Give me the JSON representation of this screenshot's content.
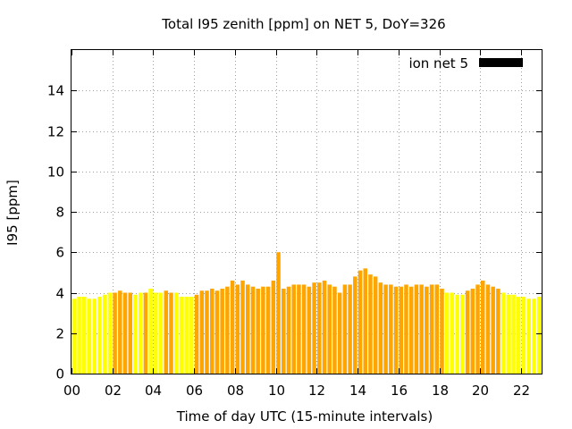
{
  "chart_data": {
    "type": "bar",
    "title": "Total I95 zenith [ppm] on NET 5, DoY=326",
    "xlabel": "Time of day UTC (15-minute intervals)",
    "ylabel": "I95 [ppm]",
    "xlim": [
      0,
      23.0
    ],
    "ylim": [
      0,
      16
    ],
    "xticks": [
      "00",
      "02",
      "04",
      "06",
      "08",
      "10",
      "12",
      "14",
      "16",
      "18",
      "20",
      "22"
    ],
    "yticks": [
      "0",
      "2",
      "4",
      "6",
      "8",
      "10",
      "12",
      "14"
    ],
    "grid": true,
    "legend": {
      "label": "ion net 5",
      "placement": "top-right",
      "color": "#000000"
    },
    "colors": {
      "low": "#ffff00",
      "high": "#ffa500"
    },
    "bar_width_hours": 0.25,
    "values": [
      3.7,
      3.8,
      3.8,
      3.7,
      3.7,
      3.8,
      3.9,
      4.0,
      4.0,
      4.1,
      4.0,
      4.0,
      3.9,
      4.0,
      4.0,
      4.2,
      4.0,
      4.0,
      4.1,
      4.0,
      4.0,
      3.8,
      3.8,
      3.8,
      3.9,
      4.1,
      4.1,
      4.2,
      4.1,
      4.2,
      4.3,
      4.6,
      4.4,
      4.6,
      4.4,
      4.3,
      4.2,
      4.3,
      4.3,
      4.6,
      6.0,
      4.2,
      4.3,
      4.4,
      4.4,
      4.4,
      4.3,
      4.5,
      4.5,
      4.6,
      4.4,
      4.3,
      4.0,
      4.4,
      4.4,
      4.8,
      5.1,
      5.2,
      4.9,
      4.8,
      4.5,
      4.4,
      4.4,
      4.3,
      4.3,
      4.4,
      4.3,
      4.4,
      4.4,
      4.3,
      4.4,
      4.4,
      4.2,
      4.0,
      4.0,
      3.9,
      3.9,
      4.1,
      4.2,
      4.4,
      4.6,
      4.4,
      4.3,
      4.2,
      4.0,
      3.9,
      3.9,
      3.8,
      3.8,
      3.7,
      3.7,
      3.8
    ],
    "levels": [
      "low",
      "low",
      "low",
      "low",
      "low",
      "low",
      "low",
      "low",
      "high",
      "high",
      "high",
      "high",
      "low",
      "low",
      "high",
      "low",
      "low",
      "low",
      "high",
      "high",
      "low",
      "low",
      "low",
      "low",
      "high",
      "high",
      "high",
      "high",
      "high",
      "high",
      "high",
      "high",
      "high",
      "high",
      "high",
      "high",
      "high",
      "high",
      "high",
      "high",
      "high",
      "high",
      "high",
      "high",
      "high",
      "high",
      "high",
      "high",
      "high",
      "high",
      "high",
      "high",
      "high",
      "high",
      "high",
      "high",
      "high",
      "high",
      "high",
      "high",
      "high",
      "high",
      "high",
      "high",
      "high",
      "high",
      "high",
      "high",
      "high",
      "high",
      "high",
      "high",
      "high",
      "low",
      "low",
      "low",
      "low",
      "high",
      "high",
      "high",
      "high",
      "high",
      "high",
      "high",
      "low",
      "low",
      "low",
      "low",
      "low",
      "low",
      "low",
      "low"
    ]
  }
}
